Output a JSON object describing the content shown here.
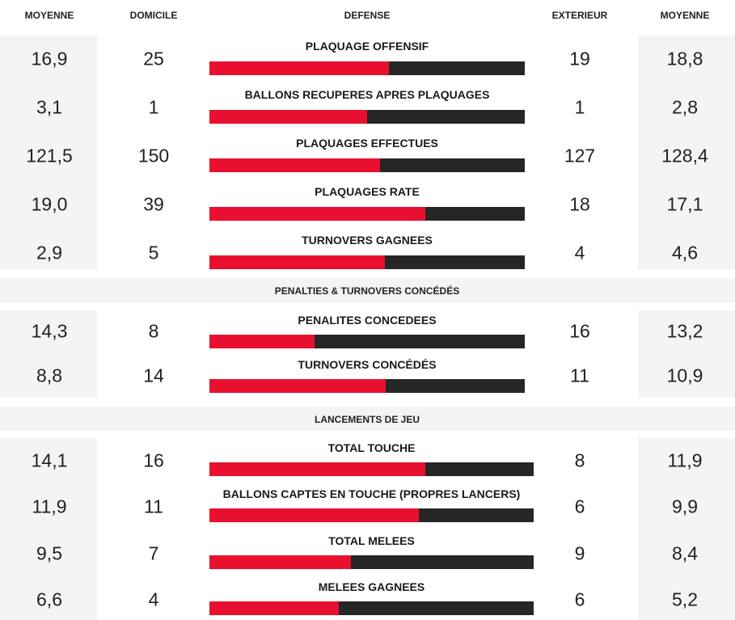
{
  "header": {
    "avg_left": "MOYENNE",
    "home": "DOMICILE",
    "category": "DEFENSE",
    "away": "EXTERIEUR",
    "avg_right": "MOYENNE"
  },
  "colors": {
    "home_bar": "#e8102e",
    "away_bar": "#262626",
    "avg_bg": "#f4f4f4"
  },
  "defense": [
    {
      "label": "PLAQUAGE OFFENSIF",
      "avg_home": "16,9",
      "home": "25",
      "away": "19",
      "avg_away": "18,8",
      "home_share": 0.568
    },
    {
      "label": "BALLONS RECUPERES APRES PLAQUAGES",
      "avg_home": "3,1",
      "home": "1",
      "away": "1",
      "avg_away": "2,8",
      "home_share": 0.5
    },
    {
      "label": "PLAQUAGES EFFECTUES",
      "avg_home": "121,5",
      "home": "150",
      "away": "127",
      "avg_away": "128,4",
      "home_share": 0.542
    },
    {
      "label": "PLAQUAGES RATE",
      "avg_home": "19,0",
      "home": "39",
      "away": "18",
      "avg_away": "17,1",
      "home_share": 0.684
    },
    {
      "label": "TURNOVERS GAGNEES",
      "avg_home": "2,9",
      "home": "5",
      "away": "4",
      "avg_away": "4,6",
      "home_share": 0.556
    }
  ],
  "penalties_title": "PENALTIES & TURNOVERS CONCÉDÉS",
  "penalties": [
    {
      "label": "PENALITES CONCEDEES",
      "avg_home": "14,3",
      "home": "8",
      "away": "16",
      "avg_away": "13,2",
      "home_share": 0.333
    },
    {
      "label": "TURNOVERS CONCÉDÉS",
      "avg_home": "8,8",
      "home": "14",
      "away": "11",
      "avg_away": "10,9",
      "home_share": 0.56
    }
  ],
  "setpiece_title": "LANCEMENTS DE JEU",
  "setpiece": [
    {
      "label": "TOTAL TOUCHE",
      "avg_home": "14,1",
      "home": "16",
      "away": "8",
      "avg_away": "11,9",
      "home_share": 0.667
    },
    {
      "label": "BALLONS CAPTES EN TOUCHE (PROPRES LANCERS)",
      "avg_home": "11,9",
      "home": "11",
      "away": "6",
      "avg_away": "9,9",
      "home_share": 0.647
    },
    {
      "label": "TOTAL MELEES",
      "avg_home": "9,5",
      "home": "7",
      "away": "9",
      "avg_away": "8,4",
      "home_share": 0.4375
    },
    {
      "label": "MELEES GAGNEES",
      "avg_home": "6,6",
      "home": "4",
      "away": "6",
      "avg_away": "5,2",
      "home_share": 0.4
    }
  ]
}
